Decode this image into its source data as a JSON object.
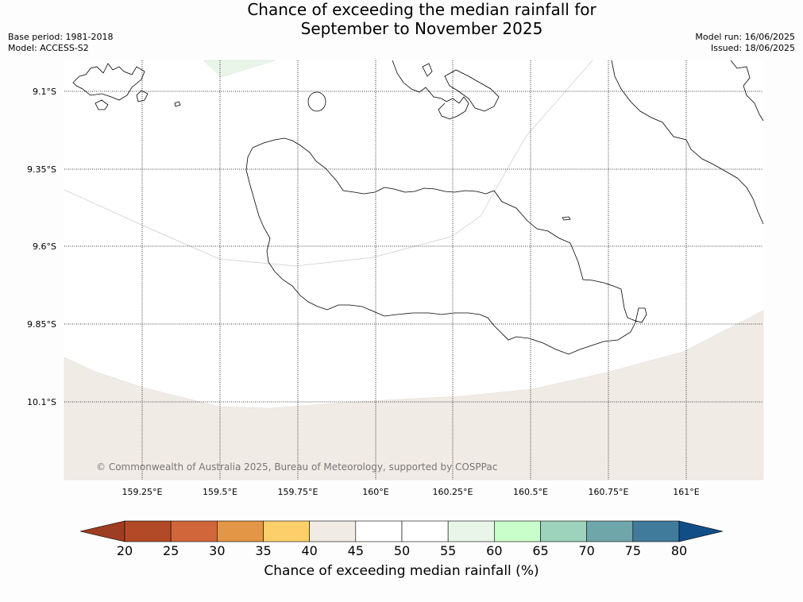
{
  "header": {
    "title_line1": "Chance of exceeding the median rainfall for",
    "title_line2": "September to November 2025",
    "base_period": "Base period: 1981-2018",
    "model": "Model: ACCESS-S2",
    "model_run": "Model run: 16/06/2025",
    "issued": "Issued: 18/06/2025"
  },
  "map": {
    "lat_labels": [
      "9.1°S",
      "9.35°S",
      "9.6°S",
      "9.85°S",
      "10.1°S"
    ],
    "lon_labels": [
      "159.25°E",
      "159.5°E",
      "159.75°E",
      "160°E",
      "160.25°E",
      "160.5°E",
      "160.75°E",
      "161°E"
    ],
    "copyright": "© Commonwealth of Australia 2025, Bureau of Meteorology, supported by COSPPac",
    "shaded_region_categories": [
      "40-45",
      "55-60"
    ]
  },
  "colorbar": {
    "label": "Chance of exceeding median rainfall (%)",
    "ticks": [
      "20",
      "25",
      "30",
      "35",
      "40",
      "45",
      "50",
      "55",
      "60",
      "65",
      "70",
      "75",
      "80"
    ],
    "colors": [
      "#9e3d22",
      "#b34a27",
      "#d0663a",
      "#e39645",
      "#fdcf6a",
      "#f1ebe5",
      "#ffffff",
      "#ffffff",
      "#e9f5e9",
      "#c9fdc9",
      "#9dd3bd",
      "#6fa6a9",
      "#407b9c",
      "#114e88"
    ]
  }
}
